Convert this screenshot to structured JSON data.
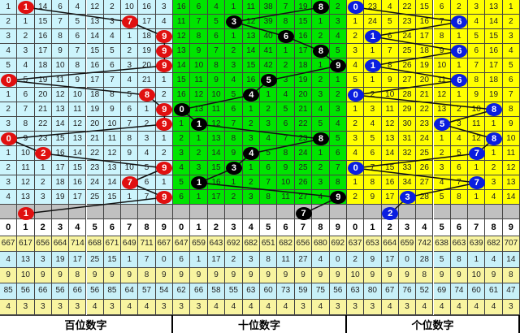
{
  "chart_data": {
    "type": "table",
    "title": "",
    "panels": [
      {
        "label": "百位数字",
        "bg": "#ccf4fc",
        "ball_color": "#e01010",
        "header": [
          "0",
          "1",
          "2",
          "3",
          "4",
          "5",
          "6",
          "7",
          "8",
          "9"
        ],
        "rows": [
          [
            "1",
            "1",
            "14",
            "6",
            "4",
            "12",
            "2",
            "10",
            "16",
            "3"
          ],
          [
            "2",
            "1",
            "15",
            "7",
            "5",
            "13",
            "3",
            "7",
            "17",
            "4"
          ],
          [
            "3",
            "2",
            "16",
            "8",
            "6",
            "14",
            "4",
            "1",
            "18",
            "9"
          ],
          [
            "4",
            "3",
            "17",
            "9",
            "7",
            "15",
            "5",
            "2",
            "19",
            "9"
          ],
          [
            "5",
            "4",
            "18",
            "10",
            "8",
            "16",
            "6",
            "3",
            "20",
            "9"
          ],
          [
            "0",
            "5",
            "19",
            "11",
            "9",
            "17",
            "7",
            "4",
            "21",
            "1"
          ],
          [
            "1",
            "6",
            "20",
            "12",
            "10",
            "18",
            "8",
            "5",
            "8",
            "2"
          ],
          [
            "2",
            "7",
            "21",
            "13",
            "11",
            "19",
            "9",
            "6",
            "1",
            "9"
          ],
          [
            "3",
            "8",
            "22",
            "14",
            "12",
            "20",
            "10",
            "7",
            "2",
            "9"
          ],
          [
            "0",
            "9",
            "23",
            "15",
            "13",
            "21",
            "11",
            "8",
            "3",
            "1"
          ],
          [
            "1",
            "10",
            "2",
            "16",
            "14",
            "22",
            "12",
            "9",
            "4",
            "2"
          ],
          [
            "2",
            "11",
            "1",
            "17",
            "15",
            "23",
            "13",
            "10",
            "5",
            "9"
          ],
          [
            "3",
            "12",
            "2",
            "18",
            "16",
            "24",
            "14",
            "7",
            "6",
            "1"
          ],
          [
            "4",
            "13",
            "3",
            "19",
            "17",
            "25",
            "15",
            "1",
            "7",
            "9"
          ]
        ],
        "digits": [
          1,
          7,
          9,
          9,
          9,
          0,
          8,
          9,
          9,
          0,
          2,
          9,
          7,
          9
        ],
        "next_digit": "1",
        "stats": [
          [
            "667",
            "617",
            "656",
            "664",
            "714",
            "668",
            "671",
            "649",
            "711",
            "667"
          ],
          [
            "4",
            "13",
            "3",
            "19",
            "17",
            "25",
            "15",
            "1",
            "7",
            "0"
          ],
          [
            "9",
            "10",
            "9",
            "9",
            "8",
            "9",
            "9",
            "9",
            "8",
            "9"
          ],
          [
            "85",
            "56",
            "66",
            "56",
            "66",
            "56",
            "85",
            "64",
            "57",
            "54"
          ],
          [
            "4",
            "3",
            "3",
            "3",
            "3",
            "4",
            "3",
            "4",
            "4",
            "3"
          ]
        ]
      },
      {
        "label": "十位数字",
        "bg": "#00e400",
        "ball_color": "#000000",
        "header": [
          "0",
          "1",
          "2",
          "3",
          "4",
          "5",
          "6",
          "7",
          "8",
          "9"
        ],
        "rows": [
          [
            "16",
            "6",
            "4",
            "1",
            "11",
            "38",
            "7",
            "19",
            "8",
            "2"
          ],
          [
            "11",
            "7",
            "5",
            "3",
            "12",
            "39",
            "8",
            "15",
            "1",
            "3"
          ],
          [
            "12",
            "8",
            "6",
            "1",
            "13",
            "40",
            "6",
            "16",
            "2",
            "4"
          ],
          [
            "13",
            "9",
            "7",
            "2",
            "14",
            "41",
            "1",
            "17",
            "8",
            "5"
          ],
          [
            "14",
            "10",
            "8",
            "3",
            "15",
            "42",
            "2",
            "18",
            "1",
            "9"
          ],
          [
            "15",
            "11",
            "9",
            "4",
            "16",
            "5",
            "3",
            "19",
            "2",
            "1"
          ],
          [
            "16",
            "12",
            "10",
            "5",
            "4",
            "1",
            "4",
            "20",
            "3",
            "2"
          ],
          [
            "0",
            "13",
            "11",
            "6",
            "1",
            "2",
            "5",
            "21",
            "4",
            "3"
          ],
          [
            "1",
            "1",
            "12",
            "7",
            "2",
            "3",
            "6",
            "22",
            "5",
            "4"
          ],
          [
            "2",
            "1",
            "13",
            "8",
            "3",
            "4",
            "7",
            "23",
            "8",
            "5"
          ],
          [
            "3",
            "2",
            "14",
            "9",
            "4",
            "5",
            "8",
            "24",
            "1",
            "6"
          ],
          [
            "4",
            "3",
            "15",
            "3",
            "1",
            "6",
            "9",
            "25",
            "2",
            "7"
          ],
          [
            "5",
            "1",
            "16",
            "1",
            "2",
            "7",
            "10",
            "26",
            "3",
            "8"
          ],
          [
            "6",
            "1",
            "17",
            "2",
            "3",
            "8",
            "11",
            "27",
            "4",
            "9"
          ]
        ],
        "digits": [
          8,
          3,
          6,
          8,
          9,
          5,
          4,
          0,
          1,
          8,
          4,
          3,
          1,
          9
        ],
        "next_digit": "7",
        "stats": [
          [
            "647",
            "659",
            "643",
            "692",
            "682",
            "651",
            "682",
            "656",
            "680",
            "692"
          ],
          [
            "6",
            "1",
            "17",
            "2",
            "3",
            "8",
            "11",
            "27",
            "4",
            "0"
          ],
          [
            "9",
            "9",
            "9",
            "9",
            "9",
            "9",
            "9",
            "9",
            "9",
            "9"
          ],
          [
            "62",
            "66",
            "58",
            "55",
            "63",
            "60",
            "73",
            "59",
            "75",
            "56"
          ],
          [
            "3",
            "3",
            "4",
            "4",
            "4",
            "4",
            "4",
            "3",
            "4",
            "3"
          ]
        ]
      },
      {
        "label": "个位数字",
        "bg": "#ffff00",
        "ball_color": "#0a1ee0",
        "header": [
          "0",
          "1",
          "2",
          "3",
          "4",
          "5",
          "6",
          "7",
          "8",
          "9"
        ],
        "rows": [
          [
            "0",
            "23",
            "4",
            "22",
            "15",
            "6",
            "2",
            "3",
            "13",
            "1"
          ],
          [
            "1",
            "24",
            "5",
            "23",
            "16",
            "7",
            "6",
            "4",
            "14",
            "2"
          ],
          [
            "2",
            "1",
            "6",
            "24",
            "17",
            "8",
            "1",
            "5",
            "15",
            "3"
          ],
          [
            "3",
            "1",
            "7",
            "25",
            "18",
            "9",
            "6",
            "6",
            "16",
            "4"
          ],
          [
            "4",
            "1",
            "8",
            "26",
            "19",
            "10",
            "1",
            "7",
            "17",
            "5"
          ],
          [
            "5",
            "1",
            "9",
            "27",
            "20",
            "11",
            "6",
            "8",
            "18",
            "6"
          ],
          [
            "0",
            "2",
            "10",
            "28",
            "21",
            "12",
            "1",
            "9",
            "19",
            "7"
          ],
          [
            "1",
            "3",
            "11",
            "29",
            "22",
            "13",
            "2",
            "10",
            "8",
            "8"
          ],
          [
            "2",
            "4",
            "12",
            "30",
            "23",
            "5",
            "3",
            "11",
            "1",
            "9"
          ],
          [
            "3",
            "5",
            "13",
            "31",
            "24",
            "1",
            "4",
            "12",
            "8",
            "10"
          ],
          [
            "4",
            "6",
            "14",
            "32",
            "25",
            "2",
            "5",
            "7",
            "1",
            "11"
          ],
          [
            "0",
            "7",
            "15",
            "33",
            "26",
            "3",
            "6",
            "1",
            "2",
            "12"
          ],
          [
            "1",
            "8",
            "16",
            "34",
            "27",
            "4",
            "7",
            "7",
            "3",
            "13"
          ],
          [
            "2",
            "9",
            "17",
            "3",
            "28",
            "5",
            "8",
            "1",
            "4",
            "14"
          ]
        ],
        "digits": [
          0,
          6,
          1,
          6,
          1,
          6,
          0,
          8,
          5,
          8,
          7,
          0,
          7,
          3
        ],
        "next_digit": "2",
        "stats": [
          [
            "637",
            "653",
            "664",
            "659",
            "742",
            "638",
            "663",
            "639",
            "682",
            "707"
          ],
          [
            "2",
            "9",
            "17",
            "0",
            "28",
            "5",
            "8",
            "1",
            "4",
            "14"
          ],
          [
            "10",
            "9",
            "9",
            "9",
            "8",
            "9",
            "9",
            "10",
            "9",
            "8"
          ],
          [
            "63",
            "80",
            "67",
            "76",
            "52",
            "69",
            "74",
            "60",
            "61",
            "47"
          ],
          [
            "3",
            "3",
            "4",
            "3",
            "4",
            "4",
            "4",
            "4",
            "4",
            "3"
          ]
        ]
      }
    ]
  }
}
